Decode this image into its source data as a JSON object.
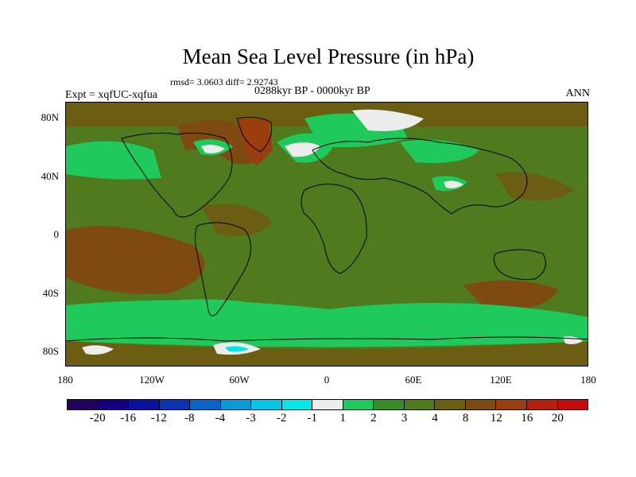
{
  "title": "Mean Sea Level Pressure (in hPa)",
  "stats_text": "rmsd= 3.0603 diff= 2.92743",
  "period_text": "0288kyr BP - 0000kyr BP",
  "expt_text": "Expt = xqfUC-xqfua",
  "season_text": "ANN",
  "y_axis_labels": [
    "80N",
    "40N",
    "0",
    "40S",
    "80S"
  ],
  "x_axis_labels": [
    "180",
    "120W",
    "60W",
    "0",
    "60E",
    "120E",
    "180"
  ],
  "legend": {
    "colors": [
      "#24005f",
      "#12007e",
      "#0a13a0",
      "#0a34b4",
      "#0a64c8",
      "#0a9ad8",
      "#06c5e6",
      "#05e6e6",
      "#ececec",
      "#1fc95c",
      "#3a8c2a",
      "#4f7a1e",
      "#6b5d12",
      "#7e4a12",
      "#9a3e10",
      "#b1210c",
      "#c40c0c"
    ],
    "labels": [
      "-20",
      "-16",
      "-12",
      "-8",
      "-4",
      "-3",
      "-2",
      "-1",
      "1",
      "2",
      "3",
      "4",
      "8",
      "12",
      "16",
      "20"
    ]
  },
  "map_colors": {
    "ocean_base": "#4f7a1e",
    "light_green": "#1fc95c",
    "brown": "#6b5d12",
    "dark_brown": "#7e4a12",
    "red_brown": "#9a3e10",
    "white": "#ececec",
    "cyan": "#05e6e6"
  }
}
